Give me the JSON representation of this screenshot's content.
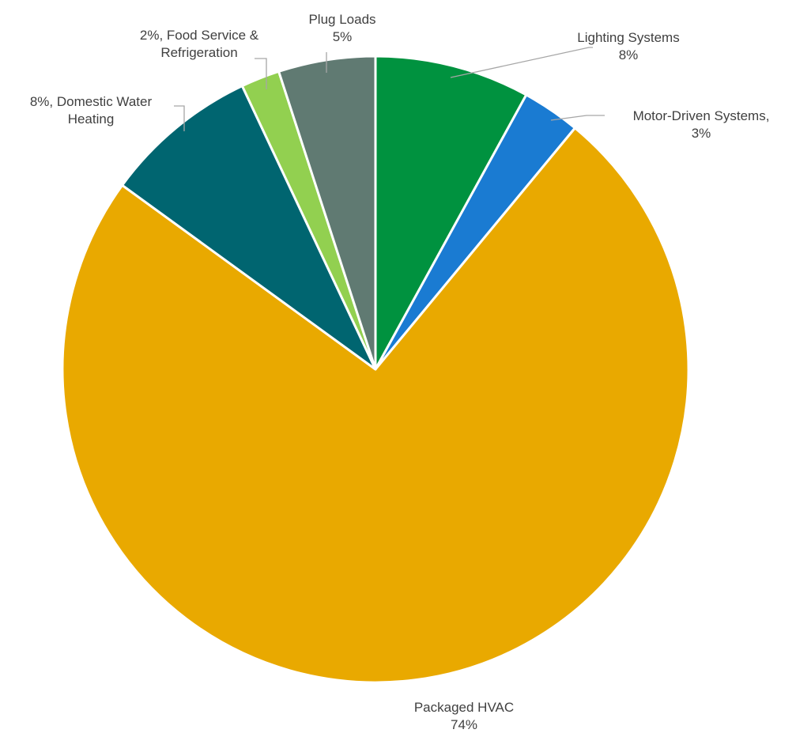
{
  "chart_data": {
    "type": "pie",
    "title": "",
    "start_angle_deg": 0,
    "direction": "clockwise",
    "slices": [
      {
        "category": "Lighting Systems",
        "value": 8,
        "percent_label": "8%",
        "color": "#00923f",
        "label_lines": [
          "Lighting Systems",
          "8%"
        ]
      },
      {
        "category": "Motor-Driven Systems",
        "value": 3,
        "percent_label": "3%",
        "color": "#1a7bd2",
        "label_lines": [
          "Motor-Driven Systems,",
          "3%"
        ]
      },
      {
        "category": "Packaged HVAC",
        "value": 74,
        "percent_label": "74%",
        "color": "#e9a900",
        "label_lines": [
          "Packaged HVAC",
          "74%"
        ]
      },
      {
        "category": "Domestic Water Heating",
        "value": 8,
        "percent_label": "8%",
        "color": "#006570",
        "label_lines": [
          "8%, Domestic Water",
          "Heating"
        ]
      },
      {
        "category": "Food Service & Refrigeration",
        "value": 2,
        "percent_label": "2%",
        "color": "#92d050",
        "label_lines": [
          "2%, Food Service &",
          "Refrigeration"
        ]
      },
      {
        "category": "Plug Loads",
        "value": 5,
        "percent_label": "5%",
        "color": "#607a72",
        "label_lines": [
          "Plug Loads",
          "5%"
        ]
      }
    ],
    "legend": "none"
  }
}
